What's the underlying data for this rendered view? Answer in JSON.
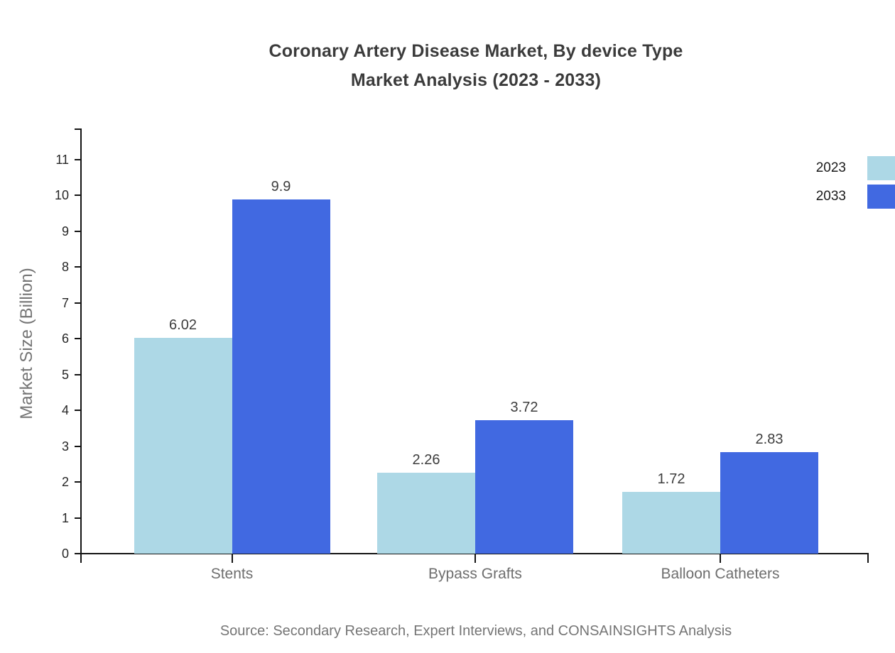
{
  "title": {
    "line1": "Coronary Artery Disease Market, By device Type",
    "line2": "Market Analysis (2023 - 2033)"
  },
  "source": "Source: Secondary Research, Expert Interviews, and CONSAINSIGHTS Analysis",
  "colors": {
    "series_2023": "#ADD8E6",
    "series_2033": "#4169E1",
    "axis": "#141414",
    "title_text": "#3b3b3b",
    "muted_text": "#757575"
  },
  "chart_data": {
    "type": "bar",
    "title": "Coronary Artery Disease Market, By device Type Market Analysis (2023 - 2033)",
    "categories": [
      "Stents",
      "Bypass Grafts",
      "Balloon Catheters"
    ],
    "series": [
      {
        "name": "2023",
        "color": "#ADD8E6",
        "values": [
          6.02,
          2.26,
          1.72
        ]
      },
      {
        "name": "2033",
        "color": "#4169E1",
        "values": [
          9.9,
          3.72,
          2.83
        ]
      }
    ],
    "data_labels": [
      [
        "6.02",
        "2.26",
        "1.72"
      ],
      [
        "9.9",
        "3.72",
        "2.83"
      ]
    ],
    "xlabel": "",
    "ylabel": "Market Size (Billion)",
    "ylim": [
      0,
      11.9
    ],
    "yticks": [
      0,
      1,
      2,
      3,
      4,
      5,
      6,
      7,
      8,
      9,
      10,
      11
    ],
    "grid": false,
    "legend_position": "top-right"
  }
}
